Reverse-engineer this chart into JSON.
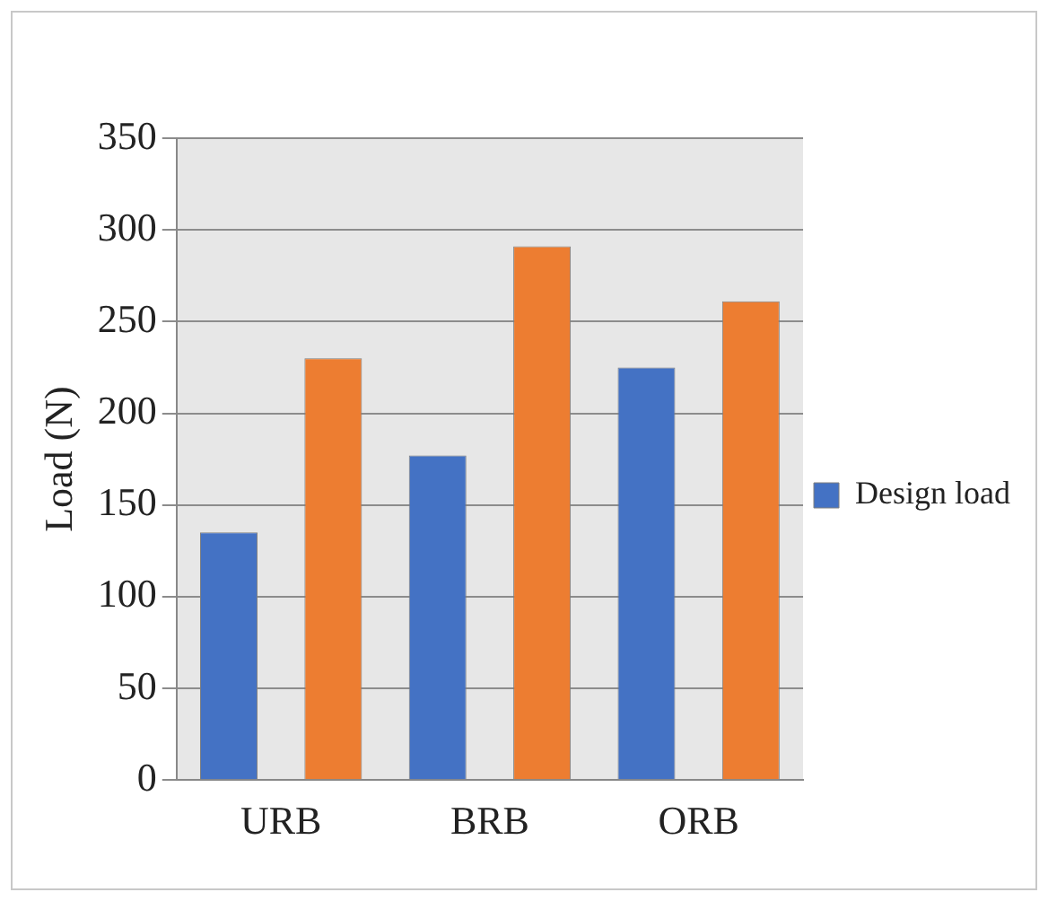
{
  "chart_data": {
    "type": "bar",
    "ylabel": "Load (N)",
    "categories": [
      "URB",
      "BRB",
      "ORB"
    ],
    "series": [
      {
        "name": "Design load",
        "color": "#4472c4",
        "values": [
          135,
          177,
          225
        ]
      },
      {
        "color": "#ed7d31",
        "values": [
          230,
          291,
          261
        ]
      }
    ],
    "ylim": [
      0,
      350
    ],
    "yticks": [
      0,
      50,
      100,
      150,
      200,
      250,
      300,
      350
    ],
    "grid": "y",
    "legend": "right"
  }
}
